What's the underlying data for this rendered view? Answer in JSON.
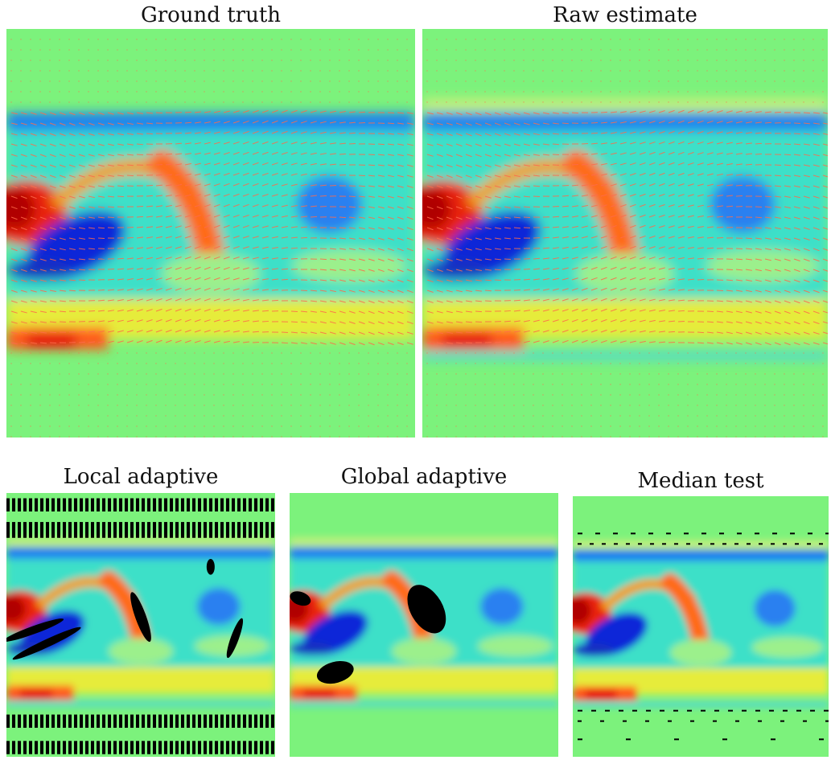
{
  "figure": {
    "panels": [
      {
        "id": "gt",
        "title": "Ground truth"
      },
      {
        "id": "raw",
        "title": "Raw estimate"
      },
      {
        "id": "local",
        "title": "Local adaptive"
      },
      {
        "id": "global",
        "title": "Global adaptive"
      },
      {
        "id": "median",
        "title": "Median test"
      }
    ]
  },
  "colors": {
    "background_field": "#7cf27c",
    "vector_color": "#ff6a4a",
    "masked_region": "#000000"
  }
}
